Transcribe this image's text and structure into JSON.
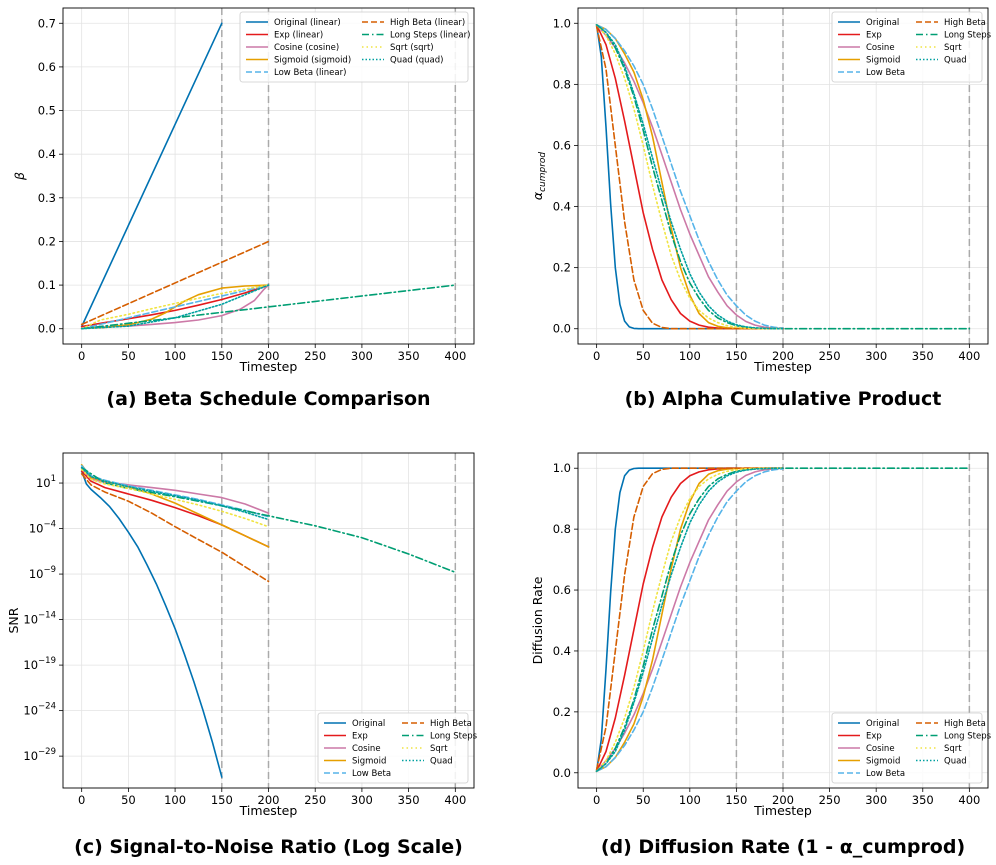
{
  "chart_data": [
    {
      "id": "a",
      "type": "line",
      "title": "(a) Beta Schedule Comparison",
      "xlabel": "Timestep",
      "ylabel": "β",
      "xlim": [
        -20,
        420
      ],
      "ylim": [
        -0.035,
        0.735
      ],
      "xticks": [
        0,
        50,
        100,
        150,
        200,
        250,
        300,
        350,
        400
      ],
      "yticks": [
        0.0,
        0.1,
        0.2,
        0.3,
        0.4,
        0.5,
        0.6,
        0.7
      ],
      "ytick_labels": [
        "0.0",
        "0.1",
        "0.2",
        "0.3",
        "0.4",
        "0.5",
        "0.6",
        "0.7"
      ],
      "yscale": "linear",
      "vlines": [
        150,
        200,
        400
      ],
      "legend_loc": "top-right",
      "legend": [
        "Original (linear)",
        "Exp (linear)",
        "Cosine (cosine)",
        "Sigmoid (sigmoid)",
        "Low Beta (linear)",
        "High Beta (linear)",
        "Long Steps (linear)",
        "Sqrt (sqrt)",
        "Quad (quad)"
      ]
    },
    {
      "id": "b",
      "type": "line",
      "title": "(b) Alpha Cumulative Product",
      "xlabel": "Timestep",
      "ylabel": "α_cumprod",
      "xlim": [
        -20,
        420
      ],
      "ylim": [
        -0.05,
        1.05
      ],
      "xticks": [
        0,
        50,
        100,
        150,
        200,
        250,
        300,
        350,
        400
      ],
      "yticks": [
        0.0,
        0.2,
        0.4,
        0.6,
        0.8,
        1.0
      ],
      "ytick_labels": [
        "0.0",
        "0.2",
        "0.4",
        "0.6",
        "0.8",
        "1.0"
      ],
      "yscale": "linear",
      "vlines": [
        150,
        200,
        400
      ],
      "legend_loc": "top-right",
      "legend": [
        "Original",
        "Exp",
        "Cosine",
        "Sigmoid",
        "Low Beta",
        "High Beta",
        "Long Steps",
        "Sqrt",
        "Quad"
      ]
    },
    {
      "id": "c",
      "type": "line",
      "title": "(c) Signal-to-Noise Ratio (Log Scale)",
      "xlabel": "Timestep",
      "ylabel": "SNR",
      "xlim": [
        -20,
        420
      ],
      "ylim_log10": [
        -32.5,
        4.3
      ],
      "xticks": [
        0,
        50,
        100,
        150,
        200,
        250,
        300,
        350,
        400
      ],
      "yticks_log10": [
        1,
        -4,
        -9,
        -14,
        -19,
        -24,
        -29
      ],
      "ytick_mantissa": [
        "10",
        "10",
        "10",
        "10",
        "10",
        "10",
        "10"
      ],
      "ytick_exponents": [
        "1",
        "−4",
        "−9",
        "−14",
        "−19",
        "−24",
        "−29"
      ],
      "yscale": "log",
      "vlines": [
        150,
        200,
        400
      ],
      "legend_loc": "bottom-right",
      "legend": [
        "Original",
        "Exp",
        "Cosine",
        "Sigmoid",
        "Low Beta",
        "High Beta",
        "Long Steps",
        "Sqrt",
        "Quad"
      ]
    },
    {
      "id": "d",
      "type": "line",
      "title": "(d) Diffusion Rate (1 - α_cumprod)",
      "xlabel": "Timestep",
      "ylabel": "Diffusion Rate",
      "xlim": [
        -20,
        420
      ],
      "ylim": [
        -0.05,
        1.05
      ],
      "xticks": [
        0,
        50,
        100,
        150,
        200,
        250,
        300,
        350,
        400
      ],
      "yticks": [
        0.0,
        0.2,
        0.4,
        0.6,
        0.8,
        1.0
      ],
      "ytick_labels": [
        "0.0",
        "0.2",
        "0.4",
        "0.6",
        "0.8",
        "1.0"
      ],
      "yscale": "linear",
      "vlines": [
        150,
        200,
        400
      ],
      "legend_loc": "bottom-right",
      "legend": [
        "Original",
        "Exp",
        "Cosine",
        "Sigmoid",
        "Low Beta",
        "High Beta",
        "Long Steps",
        "Sqrt",
        "Quad"
      ]
    }
  ],
  "series": [
    {
      "key": "original",
      "color": "#0072B2",
      "dash": "solid",
      "beta": {
        "x": [
          0,
          150
        ],
        "y": [
          0.005,
          0.7
        ]
      },
      "alpha": {
        "x": [
          0,
          5,
          10,
          15,
          20,
          25,
          30,
          35,
          40,
          45,
          50,
          60,
          150
        ],
        "y": [
          0.995,
          0.89,
          0.66,
          0.41,
          0.2,
          0.08,
          0.025,
          0.006,
          0.001,
          0.0,
          0.0,
          0.0,
          0.0
        ]
      },
      "snr_log10": {
        "x": [
          0,
          5,
          10,
          20,
          30,
          40,
          50,
          60,
          70,
          80,
          90,
          100,
          110,
          120,
          130,
          140,
          150
        ],
        "y": [
          2.3,
          0.9,
          0.3,
          -0.6,
          -1.6,
          -2.9,
          -4.4,
          -6.0,
          -8.0,
          -10.1,
          -12.5,
          -15.0,
          -17.8,
          -20.8,
          -24.0,
          -27.5,
          -31.3
        ]
      }
    },
    {
      "key": "exp",
      "color": "#E41A1C",
      "dash": "solid",
      "beta": {
        "x": [
          0,
          25,
          50,
          75,
          100,
          125,
          150,
          175,
          200
        ],
        "y": [
          0.005,
          0.014,
          0.023,
          0.032,
          0.042,
          0.054,
          0.067,
          0.082,
          0.1
        ]
      },
      "alpha": {
        "x": [
          0,
          10,
          20,
          30,
          40,
          50,
          60,
          70,
          80,
          90,
          100,
          110,
          120,
          130,
          140,
          150,
          160,
          170,
          180,
          190,
          200
        ],
        "y": [
          0.995,
          0.93,
          0.82,
          0.68,
          0.53,
          0.38,
          0.26,
          0.16,
          0.095,
          0.05,
          0.025,
          0.012,
          0.005,
          0.002,
          0.0,
          0.0,
          0.0,
          0.0,
          0.0,
          0.0,
          0.0
        ]
      },
      "snr_log10": {
        "x": [
          0,
          10,
          25,
          50,
          75,
          100,
          125,
          150,
          175,
          200
        ],
        "y": [
          2.3,
          1.2,
          0.5,
          -0.2,
          -0.9,
          -1.7,
          -2.6,
          -3.6,
          -4.8,
          -6.0
        ]
      }
    },
    {
      "key": "cosine",
      "color": "#CC79A7",
      "dash": "solid",
      "beta": {
        "x": [
          0,
          25,
          50,
          75,
          100,
          125,
          150,
          170,
          185,
          195,
          200
        ],
        "y": [
          0.002,
          0.004,
          0.006,
          0.01,
          0.014,
          0.02,
          0.03,
          0.045,
          0.065,
          0.09,
          0.1
        ]
      },
      "alpha": {
        "x": [
          0,
          10,
          20,
          30,
          40,
          50,
          60,
          70,
          80,
          90,
          100,
          110,
          120,
          130,
          140,
          150,
          160,
          170,
          180,
          190,
          200
        ],
        "y": [
          0.995,
          0.96,
          0.92,
          0.87,
          0.81,
          0.74,
          0.66,
          0.57,
          0.48,
          0.39,
          0.31,
          0.24,
          0.17,
          0.12,
          0.075,
          0.045,
          0.024,
          0.012,
          0.005,
          0.002,
          0.0
        ]
      },
      "snr_log10": {
        "x": [
          0,
          10,
          25,
          50,
          75,
          100,
          125,
          150,
          175,
          200
        ],
        "y": [
          2.6,
          1.4,
          1.1,
          0.8,
          0.5,
          0.2,
          -0.2,
          -0.6,
          -1.3,
          -2.3
        ]
      }
    },
    {
      "key": "sigmoid",
      "color": "#E69F00",
      "dash": "solid",
      "beta": {
        "x": [
          0,
          25,
          50,
          75,
          90,
          100,
          110,
          125,
          150,
          175,
          200
        ],
        "y": [
          0.001,
          0.003,
          0.009,
          0.022,
          0.037,
          0.05,
          0.063,
          0.078,
          0.093,
          0.098,
          0.1
        ]
      },
      "alpha": {
        "x": [
          0,
          10,
          20,
          30,
          40,
          50,
          60,
          70,
          80,
          90,
          100,
          110,
          120,
          130,
          140,
          150,
          160,
          170,
          180,
          190,
          200
        ],
        "y": [
          0.995,
          0.98,
          0.95,
          0.9,
          0.84,
          0.75,
          0.63,
          0.48,
          0.33,
          0.2,
          0.11,
          0.05,
          0.02,
          0.008,
          0.003,
          0.001,
          0.0,
          0.0,
          0.0,
          0.0,
          0.0
        ]
      },
      "snr_log10": {
        "x": [
          0,
          10,
          25,
          50,
          75,
          100,
          125,
          150,
          175,
          200
        ],
        "y": [
          3.0,
          1.6,
          1.2,
          0.6,
          -0.2,
          -1.2,
          -2.4,
          -3.6,
          -4.8,
          -6.0
        ]
      }
    },
    {
      "key": "low_beta",
      "color": "#56B4E9",
      "dash": "dashed",
      "beta": {
        "x": [
          0,
          200
        ],
        "y": [
          0.0,
          0.1
        ]
      },
      "alpha": {
        "x": [
          0,
          10,
          20,
          30,
          40,
          50,
          60,
          70,
          80,
          90,
          100,
          110,
          120,
          130,
          140,
          150,
          160,
          170,
          180,
          190,
          200
        ],
        "y": [
          0.995,
          0.98,
          0.95,
          0.91,
          0.86,
          0.8,
          0.72,
          0.63,
          0.54,
          0.45,
          0.37,
          0.29,
          0.22,
          0.16,
          0.11,
          0.075,
          0.045,
          0.025,
          0.012,
          0.005,
          0.002
        ]
      },
      "snr_log10": {
        "x": [
          0,
          10,
          25,
          50,
          75,
          100,
          125,
          150,
          175,
          200
        ],
        "y": [
          2.9,
          1.8,
          1.3,
          0.7,
          0.2,
          -0.3,
          -0.8,
          -1.4,
          -2.0,
          -2.7
        ]
      }
    },
    {
      "key": "high_beta",
      "color": "#D55E00",
      "dash": "dashed",
      "beta": {
        "x": [
          0,
          200
        ],
        "y": [
          0.01,
          0.2
        ]
      },
      "alpha": {
        "x": [
          0,
          10,
          20,
          30,
          40,
          50,
          60,
          70,
          80,
          90,
          100,
          200
        ],
        "y": [
          0.99,
          0.85,
          0.6,
          0.35,
          0.16,
          0.06,
          0.018,
          0.004,
          0.0,
          0.0,
          0.0,
          0.0
        ]
      },
      "snr_log10": {
        "x": [
          0,
          10,
          25,
          50,
          75,
          100,
          125,
          150,
          175,
          200
        ],
        "y": [
          2.0,
          0.8,
          0.0,
          -1.0,
          -2.3,
          -3.8,
          -5.2,
          -6.6,
          -8.2,
          -9.8
        ]
      }
    },
    {
      "key": "long_steps",
      "color": "#009E73",
      "dash": "dashdot",
      "beta": {
        "x": [
          0,
          400
        ],
        "y": [
          0.0,
          0.1
        ]
      },
      "alpha": {
        "x": [
          0,
          10,
          20,
          30,
          40,
          50,
          60,
          70,
          80,
          90,
          100,
          110,
          120,
          130,
          140,
          150,
          160,
          170,
          180,
          200,
          250,
          300,
          400
        ],
        "y": [
          0.995,
          0.97,
          0.92,
          0.85,
          0.76,
          0.65,
          0.53,
          0.42,
          0.31,
          0.22,
          0.15,
          0.1,
          0.06,
          0.035,
          0.02,
          0.01,
          0.005,
          0.002,
          0.001,
          0.0,
          0.0,
          0.0,
          0.0
        ]
      },
      "snr_log10": {
        "x": [
          0,
          25,
          50,
          100,
          150,
          200,
          250,
          300,
          350,
          400
        ],
        "y": [
          2.7,
          1.0,
          0.4,
          -0.5,
          -1.5,
          -2.6,
          -3.7,
          -5.0,
          -6.8,
          -8.8
        ]
      }
    },
    {
      "key": "sqrt",
      "color": "#F0E442",
      "dash": "dotted",
      "beta": {
        "x": [
          0,
          20,
          50,
          75,
          100,
          125,
          150,
          175,
          200
        ],
        "y": [
          0.0,
          0.02,
          0.033,
          0.046,
          0.058,
          0.07,
          0.081,
          0.091,
          0.1
        ]
      },
      "alpha": {
        "x": [
          0,
          10,
          20,
          30,
          40,
          50,
          60,
          70,
          80,
          90,
          100,
          110,
          120,
          130,
          140,
          150,
          160,
          170,
          180,
          190,
          200
        ],
        "y": [
          0.995,
          0.96,
          0.9,
          0.82,
          0.72,
          0.6,
          0.47,
          0.35,
          0.24,
          0.16,
          0.1,
          0.06,
          0.035,
          0.02,
          0.01,
          0.005,
          0.002,
          0.001,
          0.0,
          0.0,
          0.0
        ]
      },
      "snr_log10": {
        "x": [
          0,
          10,
          25,
          50,
          75,
          100,
          125,
          150,
          175,
          200
        ],
        "y": [
          2.5,
          1.4,
          0.9,
          0.4,
          -0.2,
          -0.8,
          -1.4,
          -2.1,
          -2.9,
          -3.8
        ]
      }
    },
    {
      "key": "quad",
      "color": "#00A0A0",
      "dash": "densedot",
      "beta": {
        "x": [
          0,
          50,
          100,
          150,
          200
        ],
        "y": [
          0.0,
          0.006,
          0.025,
          0.056,
          0.1
        ]
      },
      "alpha": {
        "x": [
          0,
          10,
          20,
          30,
          40,
          50,
          60,
          70,
          80,
          90,
          100,
          110,
          120,
          130,
          140,
          150,
          160,
          170,
          180,
          190,
          200
        ],
        "y": [
          0.995,
          0.97,
          0.93,
          0.86,
          0.77,
          0.67,
          0.56,
          0.45,
          0.35,
          0.26,
          0.18,
          0.12,
          0.075,
          0.045,
          0.025,
          0.013,
          0.006,
          0.003,
          0.001,
          0.0,
          0.0
        ]
      },
      "snr_log10": {
        "x": [
          0,
          10,
          25,
          50,
          75,
          100,
          125,
          150,
          175,
          200
        ],
        "y": [
          2.7,
          1.7,
          1.2,
          0.6,
          0.1,
          -0.4,
          -0.9,
          -1.5,
          -2.2,
          -3.0
        ]
      }
    }
  ]
}
